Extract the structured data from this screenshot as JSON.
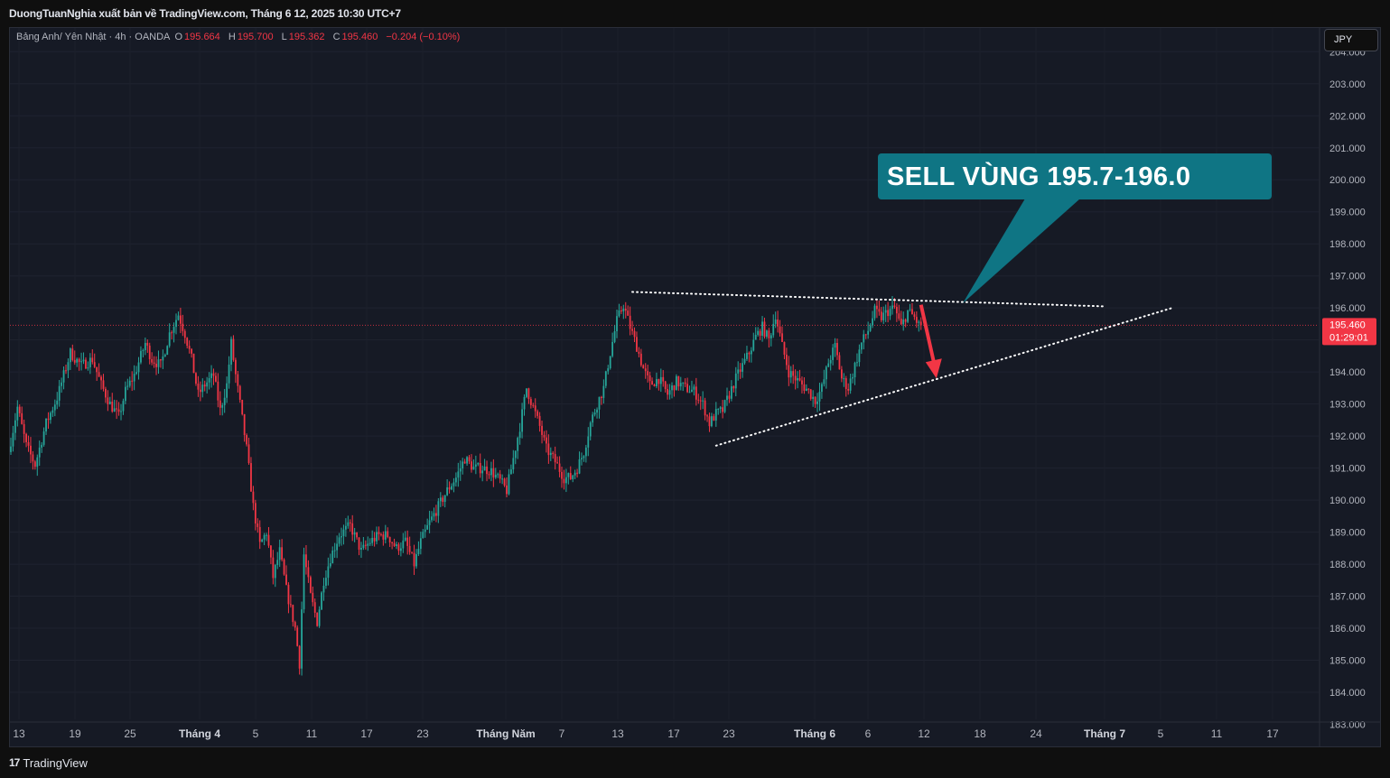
{
  "header": {
    "published_line": "DuongTuanNghia xuất bản về TradingView.com, Tháng 6 12, 2025 10:30 UTC+7"
  },
  "legend": {
    "symbol": "Bảng Anh/ Yên Nhật · 4h · OANDA",
    "open_label": "O",
    "open": "195.664",
    "high_label": "H",
    "high": "195.700",
    "low_label": "L",
    "low": "195.362",
    "close_label": "C",
    "close": "195.460",
    "change": "−0.204 (−0.10%)"
  },
  "currency_button": "JPY",
  "footer": {
    "brand": "TradingView",
    "brand_mark": "17"
  },
  "colors": {
    "up": "#26a69a",
    "down": "#f23645",
    "background": "#161a25",
    "callout": "#0f7584",
    "arrow": "#f23645",
    "price_label": "#f23645"
  },
  "chart_data": {
    "type": "candlestick",
    "timeframe": "4h",
    "ylim": [
      183.0,
      204.6
    ],
    "y_ticks": [
      "204.000",
      "203.000",
      "202.000",
      "201.000",
      "200.000",
      "199.000",
      "198.000",
      "197.000",
      "196.000",
      "195.000",
      "194.000",
      "193.000",
      "192.000",
      "191.000",
      "190.000",
      "189.000",
      "188.000",
      "187.000",
      "186.000",
      "185.000",
      "184.000",
      "183.000"
    ],
    "x_ticks": [
      "13",
      "19",
      "25",
      "Tháng 4",
      "5",
      "11",
      "17",
      "23",
      "Tháng Năm",
      "7",
      "13",
      "17",
      "23",
      "Tháng 6",
      "6",
      "12",
      "18",
      "24",
      "Tháng 7",
      "5",
      "11",
      "17"
    ],
    "current_price": {
      "value": 195.46,
      "label": "195.460",
      "countdown": "01:29:01"
    },
    "price_path": [
      {
        "t": 0,
        "p": 191.5
      },
      {
        "t": 4,
        "p": 192.9
      },
      {
        "t": 8,
        "p": 191.7
      },
      {
        "t": 12,
        "p": 191.1
      },
      {
        "t": 17,
        "p": 192.4
      },
      {
        "t": 22,
        "p": 193.2
      },
      {
        "t": 28,
        "p": 194.6
      },
      {
        "t": 33,
        "p": 194.2
      },
      {
        "t": 38,
        "p": 194.4
      },
      {
        "t": 42,
        "p": 193.6
      },
      {
        "t": 46,
        "p": 193.0
      },
      {
        "t": 50,
        "p": 192.6
      },
      {
        "t": 53,
        "p": 193.4
      },
      {
        "t": 57,
        "p": 193.9
      },
      {
        "t": 62,
        "p": 194.9
      },
      {
        "t": 65,
        "p": 194.4
      },
      {
        "t": 69,
        "p": 194.2
      },
      {
        "t": 73,
        "p": 195.2
      },
      {
        "t": 77,
        "p": 195.8
      },
      {
        "t": 80,
        "p": 195.2
      },
      {
        "t": 83,
        "p": 194.4
      },
      {
        "t": 86,
        "p": 193.3
      },
      {
        "t": 89,
        "p": 193.6
      },
      {
        "t": 93,
        "p": 193.9
      },
      {
        "t": 96,
        "p": 192.8
      },
      {
        "t": 99,
        "p": 193.6
      },
      {
        "t": 101,
        "p": 194.9
      },
      {
        "t": 103,
        "p": 193.9
      },
      {
        "t": 105,
        "p": 193.0
      },
      {
        "t": 108,
        "p": 191.6
      },
      {
        "t": 111,
        "p": 189.8
      },
      {
        "t": 114,
        "p": 188.6
      },
      {
        "t": 117,
        "p": 189.0
      },
      {
        "t": 120,
        "p": 187.6
      },
      {
        "t": 123,
        "p": 188.4
      },
      {
        "t": 126,
        "p": 187.2
      },
      {
        "t": 130,
        "p": 186.0
      },
      {
        "t": 132,
        "p": 184.9
      },
      {
        "t": 134,
        "p": 188.3
      },
      {
        "t": 137,
        "p": 187.0
      },
      {
        "t": 140,
        "p": 186.2
      },
      {
        "t": 143,
        "p": 187.5
      },
      {
        "t": 146,
        "p": 188.2
      },
      {
        "t": 150,
        "p": 188.9
      },
      {
        "t": 155,
        "p": 189.2
      },
      {
        "t": 160,
        "p": 188.4
      },
      {
        "t": 164,
        "p": 188.7
      },
      {
        "t": 168,
        "p": 188.9
      },
      {
        "t": 172,
        "p": 188.9
      },
      {
        "t": 176,
        "p": 188.5
      },
      {
        "t": 180,
        "p": 188.7
      },
      {
        "t": 184,
        "p": 188.0
      },
      {
        "t": 187,
        "p": 188.7
      },
      {
        "t": 191,
        "p": 189.3
      },
      {
        "t": 195,
        "p": 189.8
      },
      {
        "t": 199,
        "p": 190.3
      },
      {
        "t": 203,
        "p": 190.7
      },
      {
        "t": 207,
        "p": 191.3
      },
      {
        "t": 211,
        "p": 191.0
      },
      {
        "t": 215,
        "p": 191.0
      },
      {
        "t": 219,
        "p": 190.9
      },
      {
        "t": 223,
        "p": 190.6
      },
      {
        "t": 226,
        "p": 190.3
      },
      {
        "t": 229,
        "p": 191.3
      },
      {
        "t": 232,
        "p": 192.3
      },
      {
        "t": 235,
        "p": 193.5
      },
      {
        "t": 238,
        "p": 192.9
      },
      {
        "t": 241,
        "p": 192.3
      },
      {
        "t": 244,
        "p": 191.6
      },
      {
        "t": 248,
        "p": 191.2
      },
      {
        "t": 252,
        "p": 190.7
      },
      {
        "t": 255,
        "p": 190.7
      },
      {
        "t": 258,
        "p": 191.0
      },
      {
        "t": 261,
        "p": 191.5
      },
      {
        "t": 264,
        "p": 192.4
      },
      {
        "t": 267,
        "p": 193.0
      },
      {
        "t": 270,
        "p": 193.5
      },
      {
        "t": 273,
        "p": 194.6
      },
      {
        "t": 276,
        "p": 195.6
      },
      {
        "t": 279,
        "p": 196.1
      },
      {
        "t": 282,
        "p": 195.4
      },
      {
        "t": 285,
        "p": 194.8
      },
      {
        "t": 288,
        "p": 194.1
      },
      {
        "t": 291,
        "p": 193.6
      },
      {
        "t": 295,
        "p": 193.8
      },
      {
        "t": 299,
        "p": 193.3
      },
      {
        "t": 303,
        "p": 193.7
      },
      {
        "t": 307,
        "p": 193.5
      },
      {
        "t": 311,
        "p": 193.4
      },
      {
        "t": 315,
        "p": 193.0
      },
      {
        "t": 318,
        "p": 192.4
      },
      {
        "t": 321,
        "p": 192.7
      },
      {
        "t": 324,
        "p": 192.8
      },
      {
        "t": 327,
        "p": 193.3
      },
      {
        "t": 330,
        "p": 193.8
      },
      {
        "t": 333,
        "p": 194.2
      },
      {
        "t": 336,
        "p": 194.6
      },
      {
        "t": 339,
        "p": 195.1
      },
      {
        "t": 342,
        "p": 195.4
      },
      {
        "t": 345,
        "p": 195.0
      },
      {
        "t": 348,
        "p": 195.8
      },
      {
        "t": 351,
        "p": 194.8
      },
      {
        "t": 354,
        "p": 194.0
      },
      {
        "t": 357,
        "p": 193.8
      },
      {
        "t": 360,
        "p": 193.6
      },
      {
        "t": 363,
        "p": 193.4
      },
      {
        "t": 366,
        "p": 193.1
      },
      {
        "t": 369,
        "p": 193.5
      },
      {
        "t": 372,
        "p": 194.3
      },
      {
        "t": 375,
        "p": 194.8
      },
      {
        "t": 378,
        "p": 193.8
      },
      {
        "t": 381,
        "p": 193.5
      },
      {
        "t": 384,
        "p": 194.2
      },
      {
        "t": 387,
        "p": 194.9
      },
      {
        "t": 390,
        "p": 195.3
      },
      {
        "t": 393,
        "p": 195.9
      },
      {
        "t": 396,
        "p": 195.7
      },
      {
        "t": 399,
        "p": 195.9
      },
      {
        "t": 402,
        "p": 196.0
      },
      {
        "t": 405,
        "p": 195.4
      },
      {
        "t": 408,
        "p": 195.9
      },
      {
        "t": 411,
        "p": 195.7
      },
      {
        "t": 413,
        "p": 195.46
      }
    ],
    "annotations": {
      "callout_text": "SELL VÙNG 195.7-196.0",
      "resistance_line": {
        "from": {
          "t": 282,
          "p": 196.5
        },
        "to": {
          "t": 496,
          "p": 196.05
        }
      },
      "support_line": {
        "from": {
          "t": 320,
          "p": 191.7
        },
        "to": {
          "t": 527,
          "p": 196.0
        }
      },
      "arrow": {
        "from": {
          "t": 413,
          "p": 196.1
        },
        "to": {
          "t": 420,
          "p": 193.8
        }
      }
    }
  }
}
